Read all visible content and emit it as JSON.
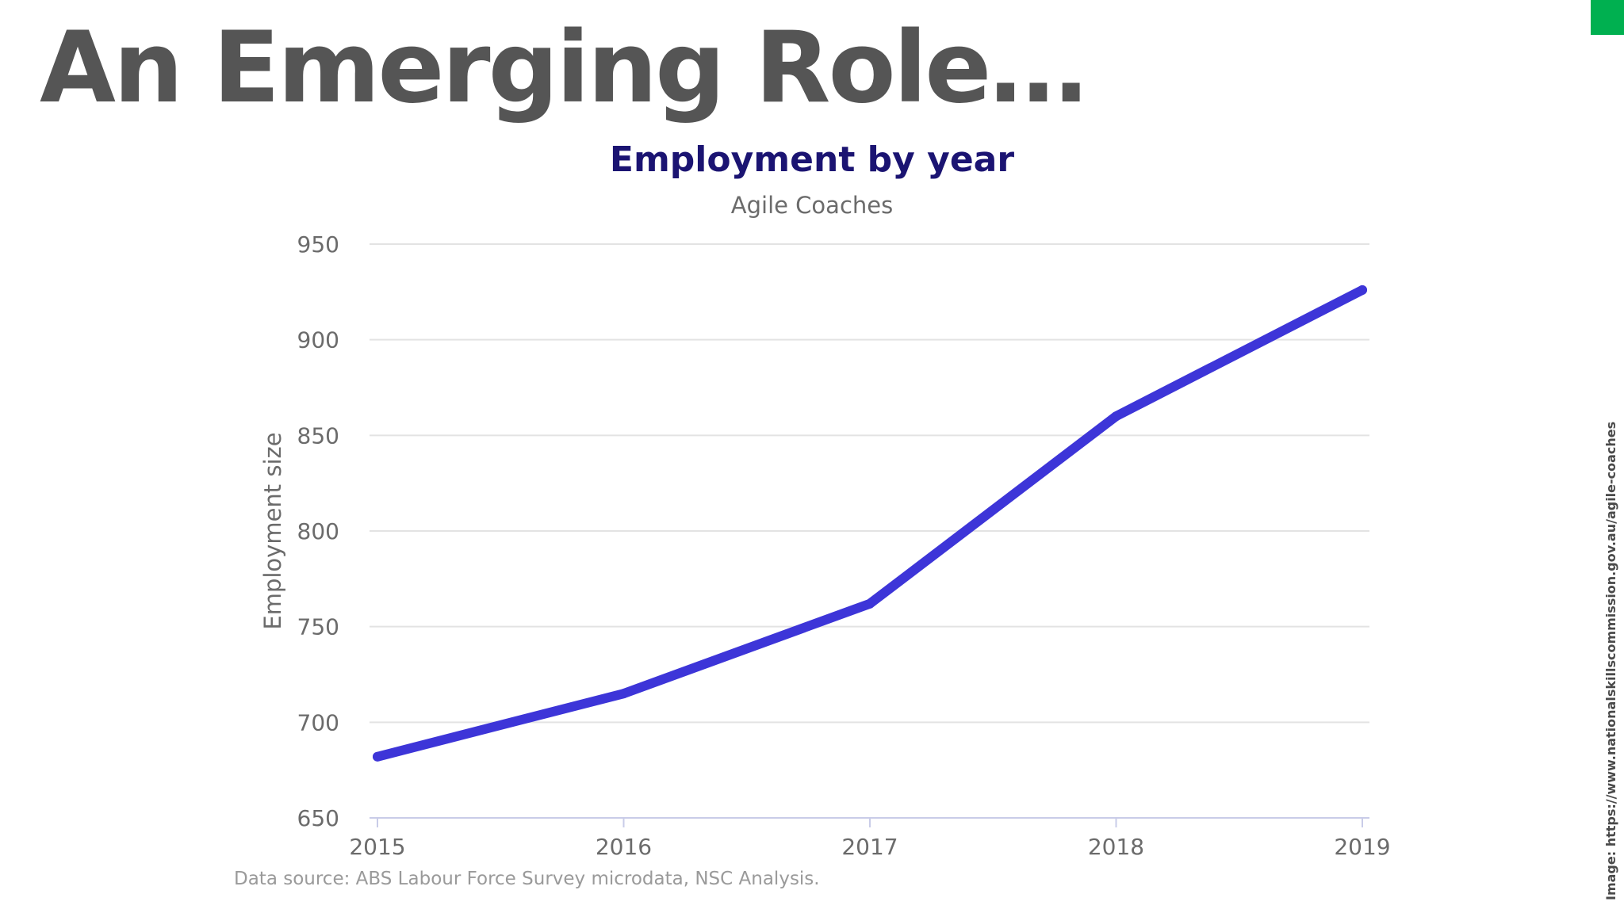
{
  "slide": {
    "title": "An Emerging Role…",
    "accent_color": "#00b050",
    "image_credit": "Image: https://www.nationalskillscommission.gov.au/agile-coaches"
  },
  "chart_data": {
    "type": "line",
    "title": "Employment by year",
    "subtitle": "Agile Coaches",
    "xlabel": "",
    "ylabel": "Employment size",
    "x": [
      2015,
      2016,
      2017,
      2018,
      2019
    ],
    "series": [
      {
        "values": [
          682,
          715,
          762,
          860,
          926
        ],
        "color": "#3d35d8"
      }
    ],
    "ylim": [
      650,
      950
    ],
    "yticks": [
      650,
      700,
      750,
      800,
      850,
      900,
      950
    ],
    "xticks": [
      "2015",
      "2016",
      "2017",
      "2018",
      "2019"
    ],
    "grid": true,
    "source": "Data source: ABS Labour Force Survey microdata, NSC Analysis."
  }
}
